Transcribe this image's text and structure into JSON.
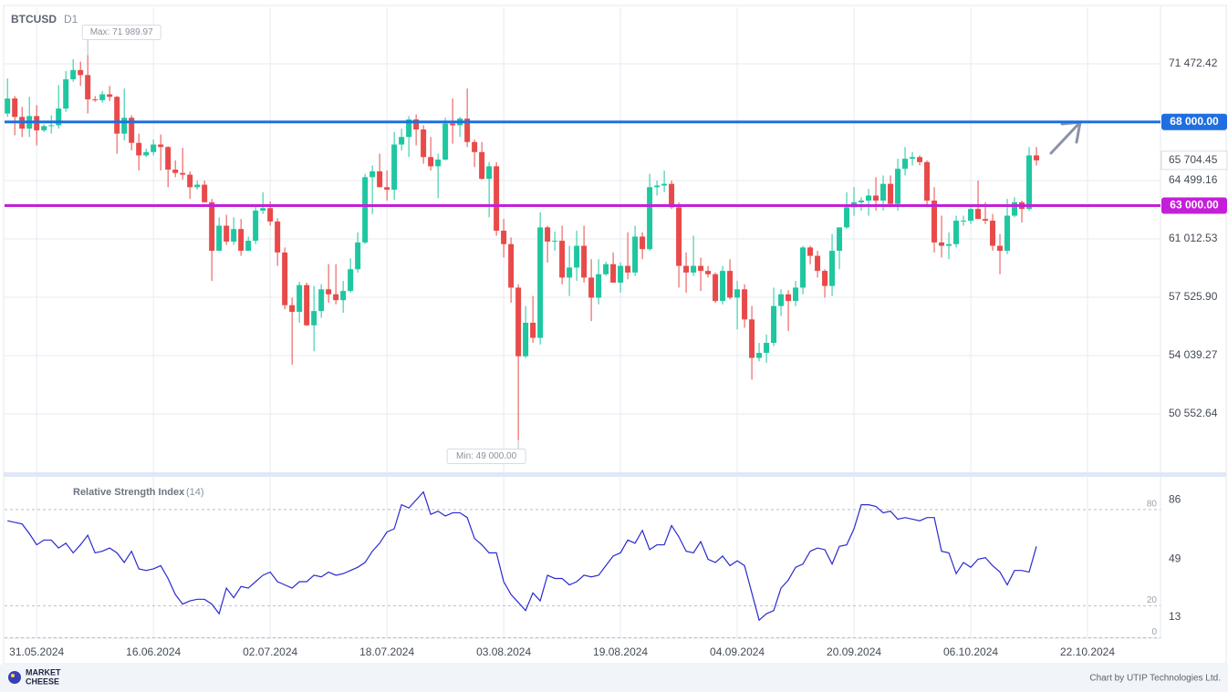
{
  "chart_data": {
    "type": "candlestick",
    "symbol": "BTCUSD",
    "timeframe": "D1",
    "up_color": "#1ec7a0",
    "down_color": "#e84a4a",
    "grid": true,
    "xlim": [
      -0.4,
      158
    ],
    "xticks": [
      {
        "value": 4,
        "label": "31.05.2024"
      },
      {
        "value": 20,
        "label": "16.06.2024"
      },
      {
        "value": 36,
        "label": "02.07.2024"
      },
      {
        "value": 52,
        "label": "18.07.2024"
      },
      {
        "value": 68,
        "label": "03.08.2024"
      },
      {
        "value": 84,
        "label": "19.08.2024"
      },
      {
        "value": 100,
        "label": "04.09.2024"
      },
      {
        "value": 116,
        "label": "20.09.2024"
      },
      {
        "value": 132,
        "label": "06.10.2024"
      },
      {
        "value": 148,
        "label": "22.10.2024"
      }
    ],
    "ylim": [
      47066,
      74850
    ],
    "yticks": [
      {
        "value": 71472.42,
        "label": "71 472.42"
      },
      {
        "value": 64499.16,
        "label": "64 499.16"
      },
      {
        "value": 61012.53,
        "label": "61 012.53"
      },
      {
        "value": 57525.9,
        "label": "57 525.90"
      },
      {
        "value": 54039.27,
        "label": "54 039.27"
      },
      {
        "value": 50552.64,
        "label": "50 552.64"
      }
    ],
    "hlines": [
      {
        "value": 68000,
        "label": "68 000.00",
        "color": "#1f6fe0"
      },
      {
        "value": 63000,
        "label": "63 000.00",
        "color": "#c41fd8"
      }
    ],
    "current_price": {
      "value": 65704.45,
      "label": "65 704.45",
      "color": "#e84a4a"
    },
    "annotations": [
      {
        "text": "Max: 71 989.97",
        "value": 71989.97
      },
      {
        "text": "Min: 49 000.00",
        "value": 49000
      }
    ],
    "candles": [
      [
        68500,
        70600,
        68300,
        69400
      ],
      [
        69400,
        69550,
        67200,
        68300
      ],
      [
        68300,
        68900,
        67100,
        67600
      ],
      [
        67600,
        69500,
        67100,
        68350
      ],
      [
        68350,
        69000,
        66600,
        67500
      ],
      [
        67500,
        67850,
        67400,
        67750
      ],
      [
        67750,
        68400,
        67300,
        67800
      ],
      [
        67800,
        70200,
        67600,
        68800
      ],
      [
        68800,
        71050,
        68600,
        70550
      ],
      [
        70550,
        71750,
        70400,
        71100
      ],
      [
        71100,
        71600,
        70150,
        70800
      ],
      [
        70800,
        71989.97,
        68500,
        69350
      ],
      [
        69350,
        69550,
        69200,
        69300
      ],
      [
        69300,
        69850,
        69150,
        69650
      ],
      [
        69650,
        70150,
        69250,
        69500
      ],
      [
        69500,
        69550,
        66100,
        67300
      ],
      [
        67300,
        69990,
        66900,
        68250
      ],
      [
        68250,
        68400,
        66300,
        66750
      ],
      [
        66750,
        67300,
        65100,
        66000
      ],
      [
        66000,
        66400,
        65900,
        66200
      ],
      [
        66200,
        66950,
        66000,
        66650
      ],
      [
        66650,
        67250,
        65100,
        66500
      ],
      [
        66500,
        66550,
        64100,
        65150
      ],
      [
        65150,
        65700,
        64700,
        64950
      ],
      [
        64950,
        66450,
        64550,
        64850
      ],
      [
        64850,
        65050,
        63400,
        64100
      ],
      [
        64100,
        64500,
        63950,
        64250
      ],
      [
        64250,
        64500,
        63200,
        63200
      ],
      [
        63200,
        63400,
        58500,
        60300
      ],
      [
        60300,
        62300,
        60300,
        61800
      ],
      [
        61800,
        62450,
        60650,
        60850
      ],
      [
        60850,
        62300,
        60650,
        61600
      ],
      [
        61600,
        62200,
        60000,
        60300
      ],
      [
        60300,
        61150,
        60300,
        60900
      ],
      [
        60900,
        63050,
        60700,
        62700
      ],
      [
        62700,
        63800,
        62500,
        62850
      ],
      [
        62850,
        63250,
        61800,
        62050
      ],
      [
        62050,
        62250,
        59400,
        60200
      ],
      [
        60200,
        60500,
        56800,
        57050
      ],
      [
        57050,
        57500,
        53500,
        56650
      ],
      [
        56650,
        58450,
        56000,
        58250
      ],
      [
        58250,
        58400,
        55800,
        55850
      ],
      [
        55850,
        58200,
        54300,
        56700
      ],
      [
        56700,
        58300,
        56300,
        58000
      ],
      [
        58000,
        59500,
        57200,
        57700
      ],
      [
        57700,
        59500,
        57100,
        57350
      ],
      [
        57350,
        58500,
        56600,
        57900
      ],
      [
        57900,
        59850,
        57800,
        59200
      ],
      [
        59200,
        61400,
        59000,
        60800
      ],
      [
        60800,
        64900,
        60700,
        64700
      ],
      [
        64700,
        65400,
        62500,
        65050
      ],
      [
        65050,
        66100,
        64200,
        64100
      ],
      [
        64100,
        65100,
        63300,
        63950
      ],
      [
        63950,
        67400,
        63350,
        66650
      ],
      [
        66650,
        67600,
        66300,
        67100
      ],
      [
        67100,
        68350,
        65900,
        68150
      ],
      [
        68150,
        68450,
        66600,
        67550
      ],
      [
        67550,
        67800,
        65500,
        65900
      ],
      [
        65900,
        67100,
        65100,
        65350
      ],
      [
        65350,
        66100,
        63450,
        65750
      ],
      [
        65750,
        68250,
        65700,
        67900
      ],
      [
        67900,
        69400,
        66700,
        67800
      ],
      [
        67800,
        68300,
        67100,
        68200
      ],
      [
        68200,
        70000,
        66500,
        66800
      ],
      [
        66800,
        66950,
        65300,
        66200
      ],
      [
        66200,
        66800,
        64550,
        64600
      ],
      [
        64600,
        65600,
        62300,
        65350
      ],
      [
        65350,
        65600,
        61200,
        61500
      ],
      [
        61500,
        62200,
        59900,
        60700
      ],
      [
        60700,
        61100,
        57200,
        58100
      ],
      [
        58100,
        58300,
        49000,
        54000
      ],
      [
        54000,
        57000,
        53900,
        56000
      ],
      [
        56000,
        57600,
        54800,
        55100
      ],
      [
        55100,
        62600,
        54700,
        61700
      ],
      [
        61700,
        61800,
        59600,
        60850
      ],
      [
        60850,
        61450,
        60300,
        60900
      ],
      [
        60900,
        61800,
        58300,
        58700
      ],
      [
        58700,
        60600,
        57600,
        59300
      ],
      [
        59300,
        61500,
        58500,
        60600
      ],
      [
        60600,
        61800,
        58400,
        58700
      ],
      [
        58700,
        59800,
        56100,
        57500
      ],
      [
        57500,
        59800,
        57100,
        58900
      ],
      [
        58900,
        59650,
        58800,
        59500
      ],
      [
        59500,
        60200,
        58400,
        58400
      ],
      [
        58400,
        59600,
        57800,
        59400
      ],
      [
        59400,
        61400,
        58600,
        59000
      ],
      [
        59000,
        61800,
        58800,
        61150
      ],
      [
        61150,
        61400,
        59800,
        60400
      ],
      [
        60400,
        64900,
        60300,
        64100
      ],
      [
        64100,
        64500,
        63600,
        64200
      ],
      [
        64200,
        65100,
        63800,
        64300
      ],
      [
        64300,
        64500,
        62800,
        62900
      ],
      [
        62900,
        63200,
        58100,
        59400
      ],
      [
        59400,
        60200,
        57800,
        59000
      ],
      [
        59000,
        61200,
        58800,
        59400
      ],
      [
        59400,
        59900,
        57900,
        59100
      ],
      [
        59100,
        59400,
        58700,
        58900
      ],
      [
        58900,
        59000,
        57200,
        57300
      ],
      [
        57300,
        59400,
        57100,
        59100
      ],
      [
        59100,
        59800,
        57400,
        57500
      ],
      [
        57500,
        58500,
        55600,
        58000
      ],
      [
        58000,
        58300,
        55700,
        56200
      ],
      [
        56200,
        57000,
        52600,
        53900
      ],
      [
        53900,
        54800,
        53700,
        54200
      ],
      [
        54200,
        55300,
        53600,
        54800
      ],
      [
        54800,
        58100,
        54600,
        57000
      ],
      [
        57000,
        58000,
        56400,
        57700
      ],
      [
        57700,
        57950,
        55500,
        57300
      ],
      [
        57300,
        58500,
        57000,
        58100
      ],
      [
        58100,
        60600,
        57700,
        60500
      ],
      [
        60500,
        60600,
        59500,
        60000
      ],
      [
        60000,
        60300,
        58700,
        59100
      ],
      [
        59100,
        59200,
        57500,
        58200
      ],
      [
        58200,
        61300,
        57600,
        60300
      ],
      [
        60300,
        61700,
        59200,
        61700
      ],
      [
        61700,
        63800,
        61600,
        62900
      ],
      [
        62900,
        64100,
        62400,
        63200
      ],
      [
        63200,
        63500,
        62700,
        63300
      ],
      [
        63300,
        64000,
        62400,
        63600
      ],
      [
        63600,
        64700,
        62700,
        63300
      ],
      [
        63300,
        64800,
        62700,
        64300
      ],
      [
        64300,
        64800,
        62900,
        63100
      ],
      [
        63100,
        65800,
        62700,
        65200
      ],
      [
        65200,
        66500,
        64800,
        65800
      ],
      [
        65800,
        66200,
        65400,
        65900
      ],
      [
        65900,
        66000,
        65400,
        65600
      ],
      [
        65600,
        65700,
        62900,
        63300
      ],
      [
        63300,
        64100,
        60200,
        60800
      ],
      [
        60800,
        62400,
        59900,
        60600
      ],
      [
        60600,
        61400,
        59800,
        60700
      ],
      [
        60700,
        62400,
        60500,
        62100
      ],
      [
        62100,
        62400,
        61800,
        62100
      ],
      [
        62100,
        62900,
        61900,
        62800
      ],
      [
        62800,
        64500,
        62200,
        62200
      ],
      [
        62200,
        63200,
        61900,
        62100
      ],
      [
        62100,
        62500,
        60300,
        60600
      ],
      [
        60600,
        61300,
        58900,
        60300
      ],
      [
        60300,
        63400,
        60100,
        62400
      ],
      [
        62400,
        63500,
        62300,
        63200
      ],
      [
        63200,
        63300,
        62000,
        62800
      ],
      [
        62800,
        66500,
        62700,
        66000
      ],
      [
        66000,
        66500,
        65400,
        65704.45
      ]
    ],
    "indicator": {
      "type": "line",
      "name": "Relative Strength Index",
      "period": "(14)",
      "color": "#2a2ad0",
      "ylim": [
        0,
        101
      ],
      "yticks": [
        13,
        49,
        86
      ],
      "levels": [
        80,
        20,
        0
      ],
      "values": [
        73,
        72,
        71,
        65,
        58,
        61,
        61,
        56,
        59,
        53,
        58,
        64,
        53,
        54,
        56,
        53,
        47,
        54,
        43,
        42,
        43,
        45,
        37,
        27,
        21,
        23,
        24,
        24,
        21,
        15,
        31,
        25,
        32,
        31,
        35,
        39,
        41,
        35,
        33,
        31,
        35,
        35,
        39,
        38,
        41,
        39,
        40,
        42,
        44,
        47,
        54,
        59,
        66,
        68,
        83,
        81,
        86,
        91,
        77,
        79,
        76,
        78,
        78,
        75,
        62,
        58,
        53,
        53,
        35,
        27,
        22,
        17,
        28,
        23,
        39,
        37,
        37,
        33,
        35,
        39,
        38,
        39,
        45,
        51,
        53,
        61,
        59,
        67,
        55,
        58,
        58,
        70,
        63,
        54,
        53,
        60,
        49,
        47,
        51,
        45,
        48,
        45,
        28,
        11,
        15,
        17,
        31,
        36,
        44,
        46,
        54,
        56,
        55,
        46,
        57,
        58,
        68,
        83,
        83,
        82,
        78,
        79,
        74,
        75,
        74,
        73,
        75,
        75,
        54,
        53,
        40,
        47,
        44,
        49,
        50,
        45,
        41,
        33,
        42,
        42,
        41,
        57
      ]
    },
    "footer": {
      "logo": [
        "MARKET",
        "CHEESE"
      ],
      "credit": "Chart by UTIP Technologies Ltd."
    }
  }
}
